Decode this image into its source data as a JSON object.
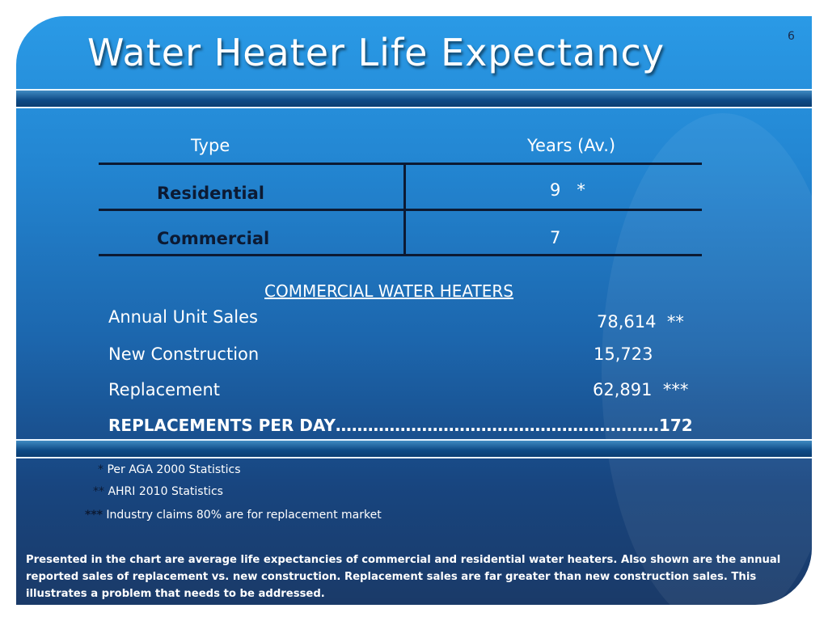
{
  "slide": {
    "title": "Water Heater Life Expectancy",
    "page_number": "6"
  },
  "table": {
    "headers": [
      "Type",
      "Years (Av.)"
    ],
    "rows": [
      {
        "type": "Residential",
        "years": "9   *"
      },
      {
        "type": "Commercial",
        "years": "7"
      }
    ]
  },
  "commercial": {
    "heading": "COMMERCIAL WATER HEATERS",
    "rows": [
      {
        "label": "Annual Unit Sales",
        "value": "78,614  **"
      },
      {
        "label": "New Construction",
        "value": "15,723"
      },
      {
        "label": "Replacement",
        "value": "62,891  ***"
      }
    ],
    "total": "REPLACEMENTS PER DAY……………………………………………………172"
  },
  "footnotes": [
    {
      "stars": "*",
      "text": " Per AGA 2000 Statistics"
    },
    {
      "stars": "**",
      "text": " AHRI 2010 Statistics"
    },
    {
      "stars": "***",
      "text": " Industry claims 80% are for replacement market"
    }
  ],
  "note": "Presented in the chart are average life expectancies of commercial and residential water heaters.  Also shown are the annual reported sales of replacement vs. new construction.  Replacement sales are far greater than new construction sales.  This illustrates a problem that needs to be addressed."
}
